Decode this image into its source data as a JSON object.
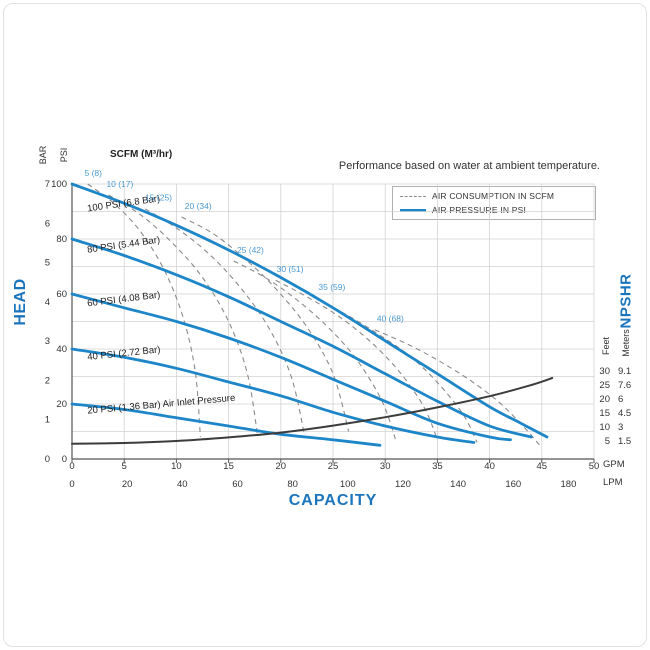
{
  "colors": {
    "accent": "#1d86c8",
    "title_blue": "#1b75bc",
    "scfm_label": "#4a9bd1",
    "grid": "#d2d2d2",
    "axis": "#555555",
    "text": "#333333",
    "dashed": "#8a8a8a",
    "dark_curve": "#3c3c3c"
  },
  "chart_data": {
    "type": "line",
    "title": "Performance based on water at ambient temperature.",
    "scfm_header": "SCFM (M³/hr)",
    "legend": [
      {
        "label": "AIR CONSUMPTION IN SCFM",
        "style": "dashed"
      },
      {
        "label": "AIR PRESSURE IN PSI",
        "style": "solid"
      }
    ],
    "axes": {
      "x": {
        "title": "CAPACITY",
        "units": [
          {
            "name": "GPM",
            "ticks": [
              0,
              5,
              10,
              15,
              20,
              25,
              30,
              35,
              40,
              45,
              50
            ]
          },
          {
            "name": "LPM",
            "ticks": [
              0,
              20,
              40,
              60,
              80,
              100,
              120,
              140,
              160,
              180
            ]
          }
        ],
        "range_gpm": [
          0,
          50
        ]
      },
      "y": {
        "title": "HEAD",
        "units": [
          {
            "name": "BAR",
            "ticks": [
              7,
              6,
              5,
              4,
              3,
              2,
              1,
              0
            ]
          },
          {
            "name": "PSI",
            "ticks": [
              100,
              80,
              60,
              40,
              20,
              0
            ]
          }
        ],
        "range_psi": [
          0,
          100
        ]
      },
      "y2": {
        "title": "NPSHR",
        "units": [
          {
            "name": "Feet",
            "ticks": [
              30,
              25,
              20,
              15,
              10,
              5
            ]
          },
          {
            "name": "Meters",
            "ticks": [
              9.1,
              7.6,
              6,
              4.5,
              3,
              1.5
            ]
          }
        ]
      }
    },
    "grid": {
      "x_step_gpm": 5,
      "y_step_psi": 10
    },
    "pressure_curves": [
      {
        "label": "100 PSI (6.8 Bar)",
        "label_pos": [
          1.5,
          90
        ],
        "label_rotate": -8,
        "points": [
          [
            0,
            100
          ],
          [
            5,
            93
          ],
          [
            10,
            85
          ],
          [
            15,
            76
          ],
          [
            20,
            66
          ],
          [
            25,
            55
          ],
          [
            30,
            43
          ],
          [
            35,
            31
          ],
          [
            40,
            19
          ],
          [
            43,
            13
          ],
          [
            45.5,
            8
          ]
        ]
      },
      {
        "label": "80 PSI (5.44 Bar)",
        "label_pos": [
          1.5,
          75
        ],
        "label_rotate": -8,
        "points": [
          [
            0,
            80
          ],
          [
            5,
            74
          ],
          [
            10,
            67
          ],
          [
            15,
            59
          ],
          [
            20,
            50
          ],
          [
            25,
            41
          ],
          [
            30,
            31
          ],
          [
            35,
            21
          ],
          [
            40,
            12
          ],
          [
            44,
            8
          ]
        ]
      },
      {
        "label": "60 PSI (4.08 Bar)",
        "label_pos": [
          1.5,
          55.5
        ],
        "label_rotate": -7,
        "points": [
          [
            0,
            60
          ],
          [
            5,
            55
          ],
          [
            10,
            50
          ],
          [
            15,
            44
          ],
          [
            20,
            37
          ],
          [
            25,
            29
          ],
          [
            30,
            21
          ],
          [
            35,
            13
          ],
          [
            40,
            8
          ],
          [
            42,
            7
          ]
        ]
      },
      {
        "label": "40 PSI (2.72 Bar)",
        "label_pos": [
          1.5,
          36
        ],
        "label_rotate": -6,
        "points": [
          [
            0,
            40
          ],
          [
            5,
            37
          ],
          [
            10,
            33
          ],
          [
            15,
            28
          ],
          [
            20,
            23
          ],
          [
            25,
            17
          ],
          [
            30,
            12
          ],
          [
            35,
            8
          ],
          [
            38.5,
            6
          ]
        ]
      },
      {
        "label": "20 PSI (1.36 Bar) Air Inlet Pressure",
        "label_pos": [
          1.5,
          16.5
        ],
        "label_rotate": -5,
        "points": [
          [
            0,
            20
          ],
          [
            5,
            18
          ],
          [
            10,
            15
          ],
          [
            15,
            12
          ],
          [
            20,
            9
          ],
          [
            25,
            7
          ],
          [
            29.5,
            5
          ]
        ]
      }
    ],
    "air_consumption_curves": [
      {
        "label": "5 (8)",
        "label_pos": [
          1.2,
          103
        ],
        "points": [
          [
            1.5,
            100
          ],
          [
            4,
            93
          ],
          [
            6.5,
            83
          ],
          [
            8.8,
            69
          ],
          [
            10.6,
            52
          ],
          [
            11.8,
            32
          ],
          [
            12.3,
            8
          ]
        ]
      },
      {
        "label": "10 (17)",
        "label_pos": [
          3.3,
          99
        ],
        "points": [
          [
            3.5,
            96
          ],
          [
            6.5,
            89
          ],
          [
            9.5,
            79
          ],
          [
            12.5,
            66
          ],
          [
            15,
            50
          ],
          [
            16.8,
            31
          ],
          [
            17.8,
            8
          ]
        ]
      },
      {
        "label": "15 (25)",
        "label_pos": [
          7,
          94
        ],
        "points": [
          [
            7,
            91
          ],
          [
            10,
            84
          ],
          [
            13,
            75
          ],
          [
            16,
            63
          ],
          [
            18.8,
            48
          ],
          [
            21,
            30
          ],
          [
            22.3,
            8
          ]
        ]
      },
      {
        "label": "20 (34)",
        "label_pos": [
          10.8,
          91
        ],
        "points": [
          [
            10.5,
            88
          ],
          [
            13.5,
            82
          ],
          [
            16.5,
            73
          ],
          [
            19.5,
            62
          ],
          [
            22.5,
            48
          ],
          [
            25,
            31
          ],
          [
            26.5,
            10
          ]
        ]
      },
      {
        "label": "25 (42)",
        "label_pos": [
          15.8,
          75
        ],
        "points": [
          [
            15.5,
            72
          ],
          [
            18.5,
            66
          ],
          [
            21.5,
            58
          ],
          [
            24.5,
            48
          ],
          [
            27.3,
            36
          ],
          [
            29.7,
            21
          ],
          [
            31,
            7
          ]
        ]
      },
      {
        "label": "30 (51)",
        "label_pos": [
          19.6,
          68
        ],
        "points": [
          [
            19.5,
            65
          ],
          [
            22.5,
            59
          ],
          [
            25.5,
            52
          ],
          [
            28.5,
            43
          ],
          [
            31.3,
            32
          ],
          [
            33.7,
            19
          ],
          [
            35,
            7
          ]
        ]
      },
      {
        "label": "35 (59)",
        "label_pos": [
          23.6,
          61.5
        ],
        "points": [
          [
            23.5,
            58
          ],
          [
            26.5,
            52
          ],
          [
            29.5,
            45
          ],
          [
            32.5,
            37
          ],
          [
            35.2,
            27
          ],
          [
            37.5,
            16
          ],
          [
            38.8,
            6
          ]
        ]
      },
      {
        "label": "40 (68)",
        "label_pos": [
          29.2,
          50
        ],
        "points": [
          [
            29,
            47
          ],
          [
            32,
            42
          ],
          [
            35,
            36
          ],
          [
            38,
            29
          ],
          [
            40.8,
            21
          ],
          [
            43.2,
            12
          ],
          [
            44.8,
            5
          ]
        ]
      }
    ],
    "npshr_curve": {
      "points_gpm_feet": [
        [
          0,
          4
        ],
        [
          5,
          4.3
        ],
        [
          10,
          5
        ],
        [
          15,
          6.3
        ],
        [
          20,
          8
        ],
        [
          25,
          10.5
        ],
        [
          30,
          13.5
        ],
        [
          35,
          17
        ],
        [
          40,
          21
        ],
        [
          44,
          25
        ],
        [
          46,
          27.5
        ]
      ]
    }
  }
}
